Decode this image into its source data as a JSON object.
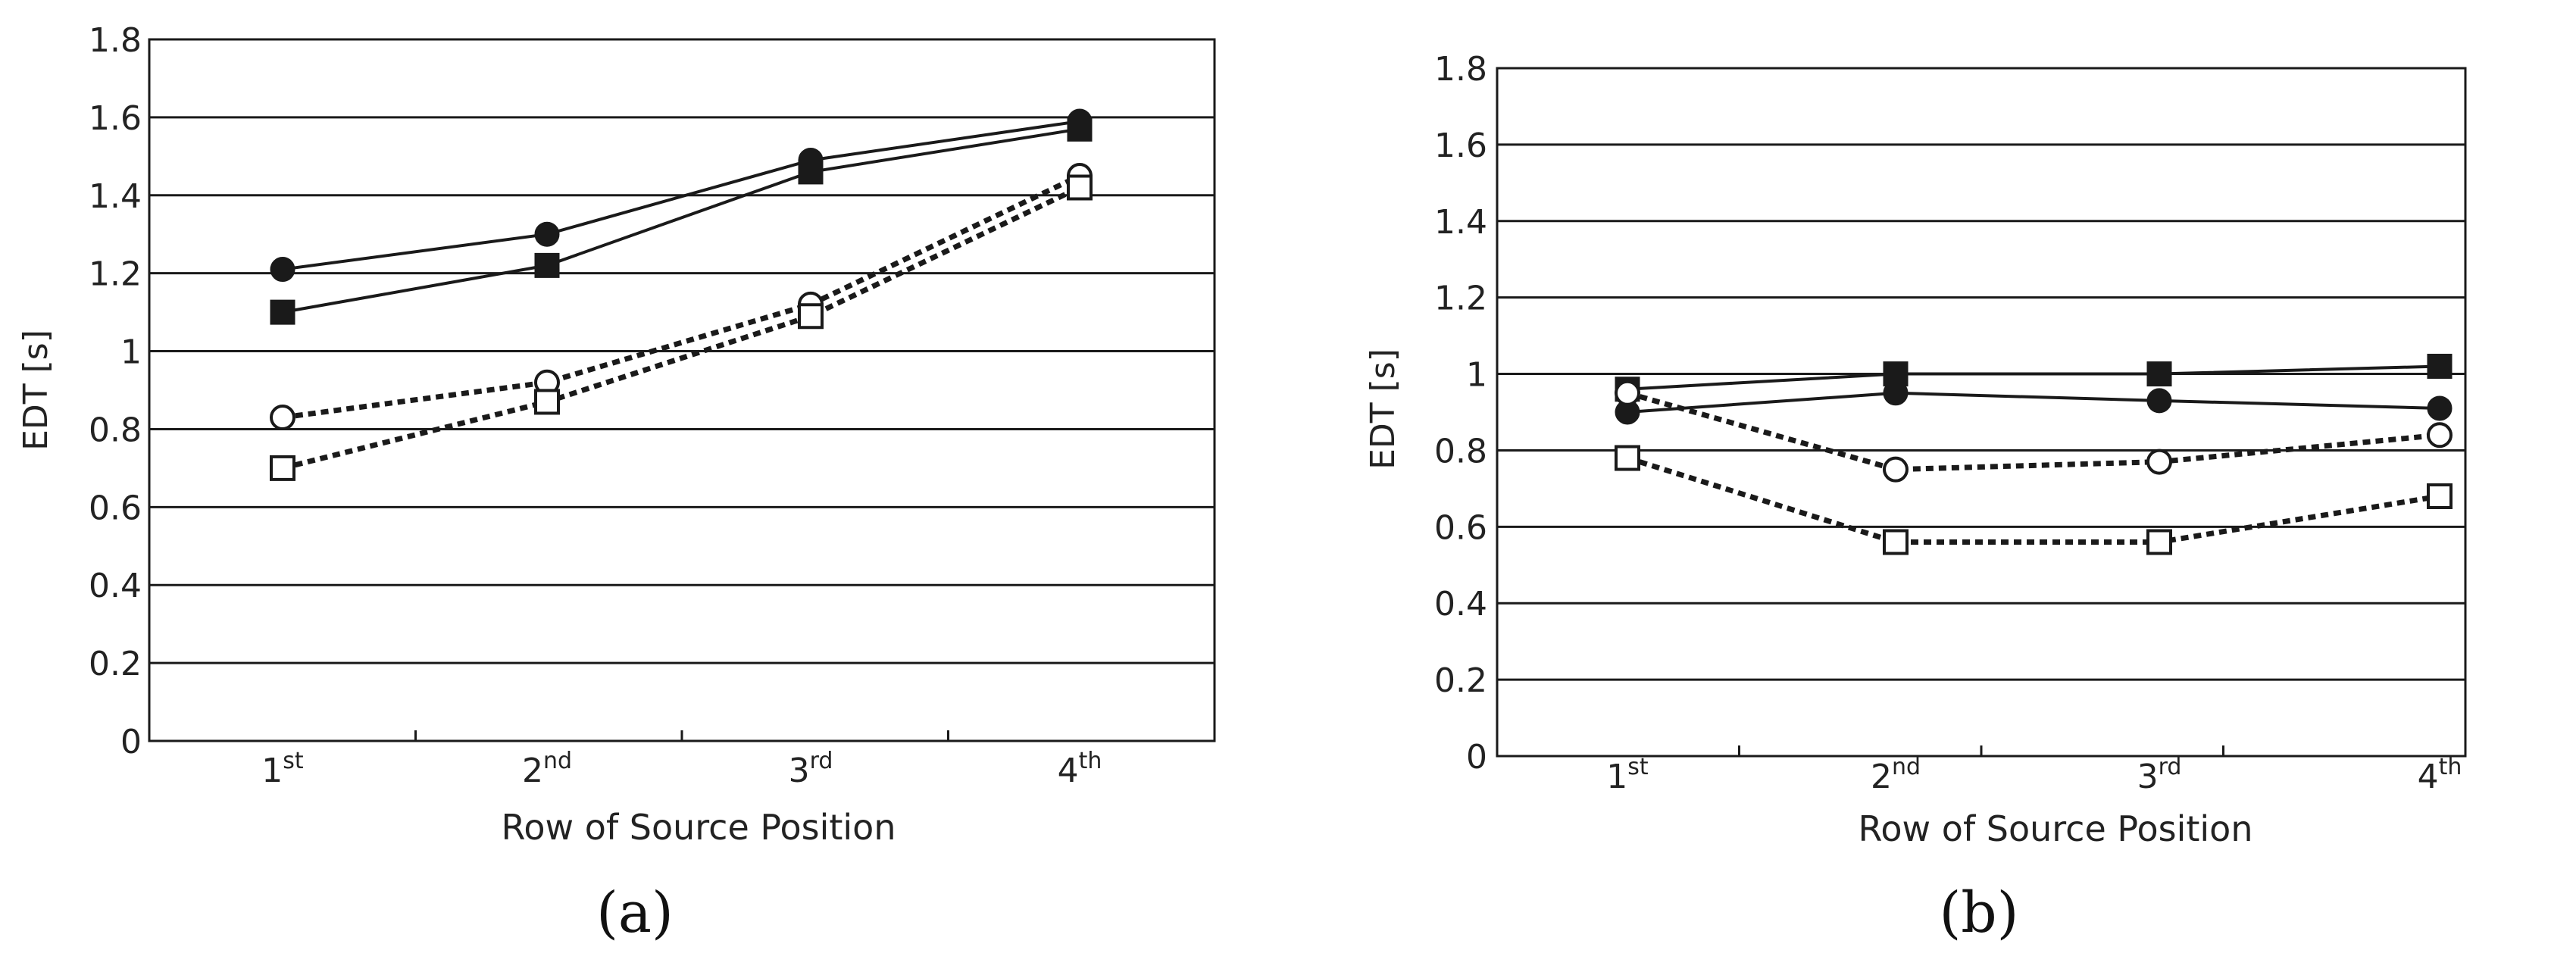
{
  "panel_labels": [
    "(a)",
    "(b)"
  ],
  "chart_data": [
    {
      "type": "line",
      "panel": "(a)",
      "xlabel": "Row of Source Position",
      "ylabel": "EDT [s]",
      "categories": [
        {
          "base": "1",
          "sup": "st"
        },
        {
          "base": "2",
          "sup": "nd"
        },
        {
          "base": "3",
          "sup": "rd"
        },
        {
          "base": "4",
          "sup": "th"
        }
      ],
      "ylim": [
        0,
        1.8
      ],
      "yticks": [
        "0",
        "0.2",
        "0.4",
        "0.6",
        "0.8",
        "1",
        "1.2",
        "1.4",
        "1.6",
        "1.8"
      ],
      "grid": true,
      "series": [
        {
          "marker": "filled-circle",
          "line": "solid",
          "values": [
            1.21,
            1.3,
            1.49,
            1.59
          ]
        },
        {
          "marker": "filled-square",
          "line": "solid",
          "values": [
            1.1,
            1.22,
            1.46,
            1.57
          ]
        },
        {
          "marker": "open-circle",
          "line": "dashed",
          "values": [
            0.83,
            0.92,
            1.12,
            1.45
          ]
        },
        {
          "marker": "open-square",
          "line": "dashed",
          "values": [
            0.7,
            0.87,
            1.09,
            1.42
          ]
        }
      ]
    },
    {
      "type": "line",
      "panel": "(b)",
      "xlabel": "Row of Source Position",
      "ylabel": "EDT [s]",
      "categories": [
        {
          "base": "1",
          "sup": "st"
        },
        {
          "base": "2",
          "sup": "nd"
        },
        {
          "base": "3",
          "sup": "rd"
        },
        {
          "base": "4",
          "sup": "th"
        }
      ],
      "ylim": [
        0,
        1.8
      ],
      "yticks": [
        "0",
        "0.2",
        "0.4",
        "0.6",
        "0.8",
        "1",
        "1.2",
        "1.4",
        "1.6",
        "1.8"
      ],
      "grid": true,
      "series": [
        {
          "marker": "filled-circle",
          "line": "solid",
          "values": [
            0.9,
            0.95,
            0.93,
            0.91
          ]
        },
        {
          "marker": "filled-square",
          "line": "solid",
          "values": [
            0.96,
            1.0,
            1.0,
            1.02
          ]
        },
        {
          "marker": "open-circle",
          "line": "dashed",
          "values": [
            0.95,
            0.75,
            0.77,
            0.84
          ]
        },
        {
          "marker": "open-square",
          "line": "dashed",
          "values": [
            0.78,
            0.56,
            0.56,
            0.68
          ]
        }
      ]
    }
  ]
}
